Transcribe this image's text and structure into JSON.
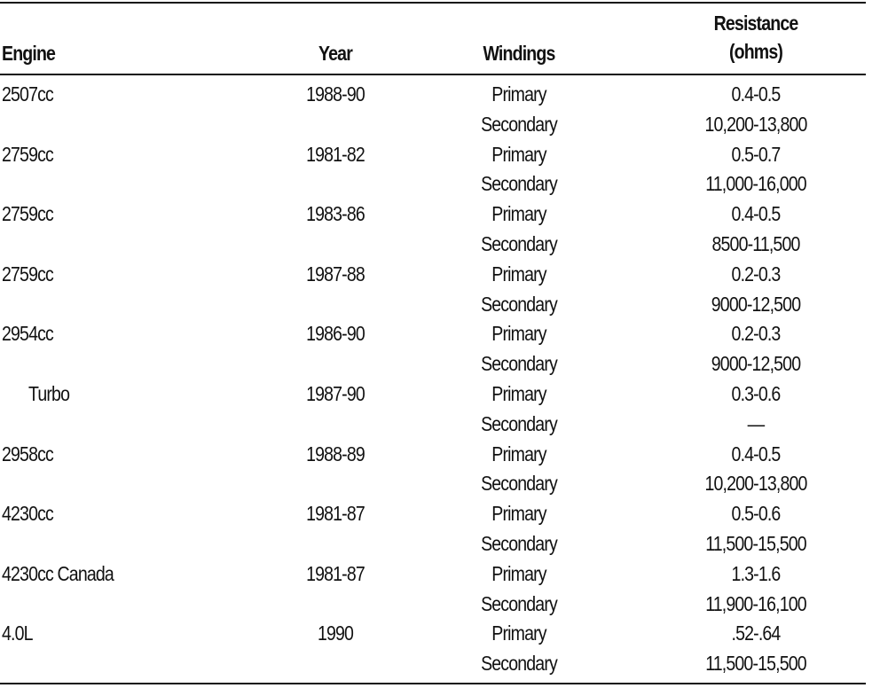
{
  "header": {
    "engine": "Engine",
    "year": "Year",
    "windings": "Windings",
    "resistance": [
      "Resistance",
      "(ohms)"
    ]
  },
  "groups": [
    {
      "engine": "2507cc",
      "year": "1988-90",
      "rows": [
        {
          "winding": "Primary",
          "resistance": "0.4-0.5"
        },
        {
          "winding": "Secondary",
          "resistance": "10,200-13,800"
        }
      ]
    },
    {
      "engine": "2759cc",
      "year": "1981-82",
      "rows": [
        {
          "winding": "Primary",
          "resistance": "0.5-0.7"
        },
        {
          "winding": "Secondary",
          "resistance": "11,000-16,000"
        }
      ]
    },
    {
      "engine": "2759cc",
      "year": "1983-86",
      "rows": [
        {
          "winding": "Primary",
          "resistance": "0.4-0.5"
        },
        {
          "winding": "Secondary",
          "resistance": "8500-11,500"
        }
      ]
    },
    {
      "engine": "2759cc",
      "year": "1987-88",
      "rows": [
        {
          "winding": "Primary",
          "resistance": "0.2-0.3"
        },
        {
          "winding": "Secondary",
          "resistance": "9000-12,500"
        }
      ]
    },
    {
      "engine": "2954cc",
      "year": "1986-90",
      "rows": [
        {
          "winding": "Primary",
          "resistance": "0.2-0.3"
        },
        {
          "winding": "Secondary",
          "resistance": "9000-12,500"
        }
      ]
    },
    {
      "engine": "Turbo",
      "year": "1987-90",
      "rows": [
        {
          "winding": "Primary",
          "resistance": "0.3-0.6"
        },
        {
          "winding": "Secondary",
          "resistance": "—"
        }
      ]
    },
    {
      "engine": "2958cc",
      "year": "1988-89",
      "rows": [
        {
          "winding": "Primary",
          "resistance": "0.4-0.5"
        },
        {
          "winding": "Secondary",
          "resistance": "10,200-13,800"
        }
      ]
    },
    {
      "engine": "4230cc",
      "year": "1981-87",
      "rows": [
        {
          "winding": "Primary",
          "resistance": "0.5-0.6"
        },
        {
          "winding": "Secondary",
          "resistance": "11,500-15,500"
        }
      ]
    },
    {
      "engine": "4230cc Canada",
      "year": "1981-87",
      "rows": [
        {
          "winding": "Primary",
          "resistance": "1.3-1.6"
        },
        {
          "winding": "Secondary",
          "resistance": "11,900-16,100"
        }
      ]
    },
    {
      "engine": "4.0L",
      "year": "1990",
      "rows": [
        {
          "winding": "Primary",
          "resistance": ".52-.64"
        },
        {
          "winding": "Secondary",
          "resistance": "11,500-15,500"
        }
      ]
    }
  ]
}
